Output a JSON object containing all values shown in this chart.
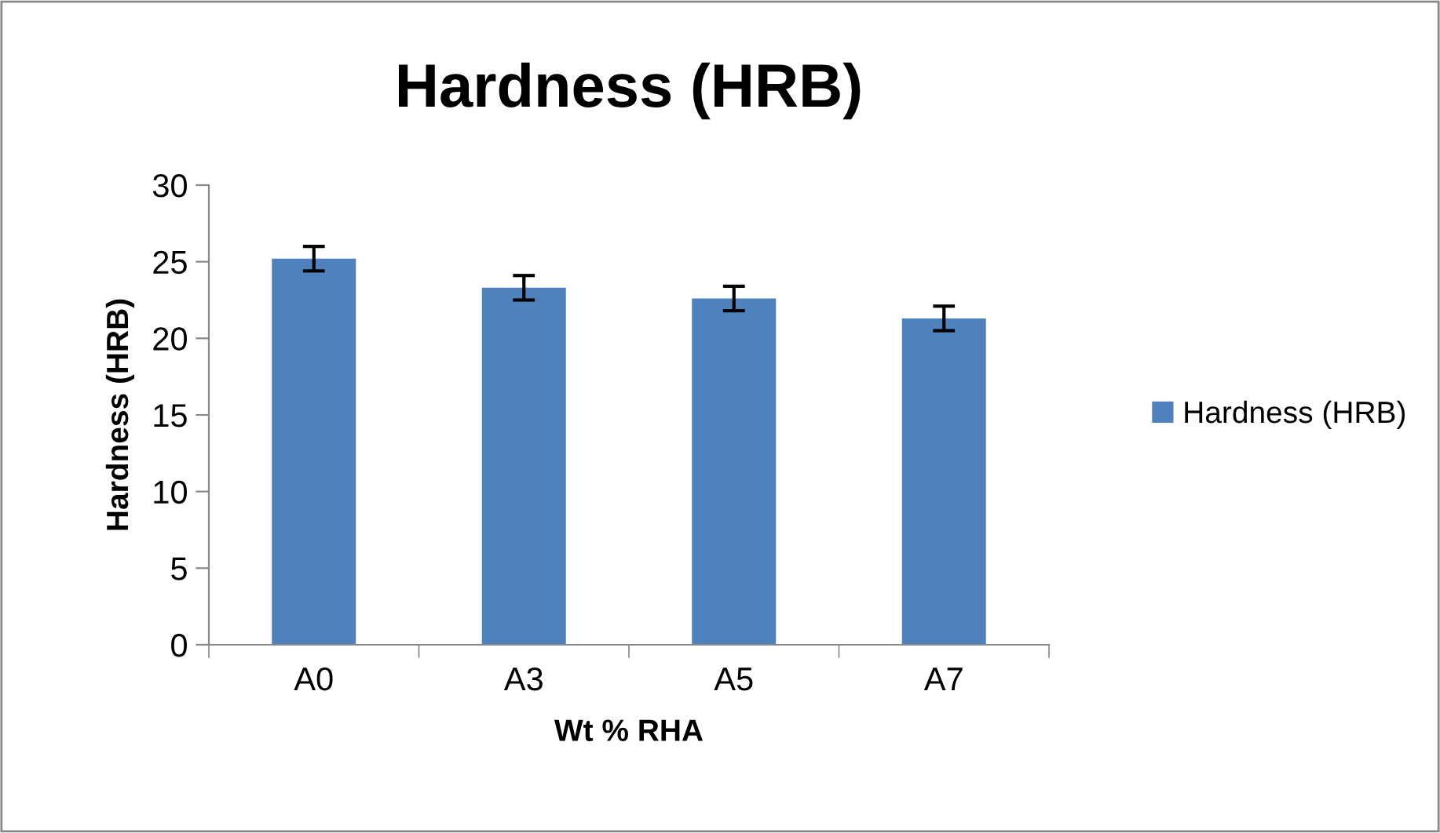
{
  "chart_data": {
    "type": "bar",
    "title": "Hardness (HRB)",
    "xlabel": "Wt % RHA",
    "ylabel": "Hardness (HRB)",
    "categories": [
      "A0",
      "A3",
      "A5",
      "A7"
    ],
    "series": [
      {
        "name": "Hardness (HRB)",
        "color": "#4f81bd",
        "values": [
          25.2,
          23.3,
          22.6,
          21.3
        ],
        "errors": [
          0.8,
          0.8,
          0.8,
          0.8
        ]
      }
    ],
    "ylim": [
      0,
      30
    ],
    "yticks": [
      0,
      5,
      10,
      15,
      20,
      25,
      30
    ],
    "grid": false,
    "legend": "right"
  }
}
